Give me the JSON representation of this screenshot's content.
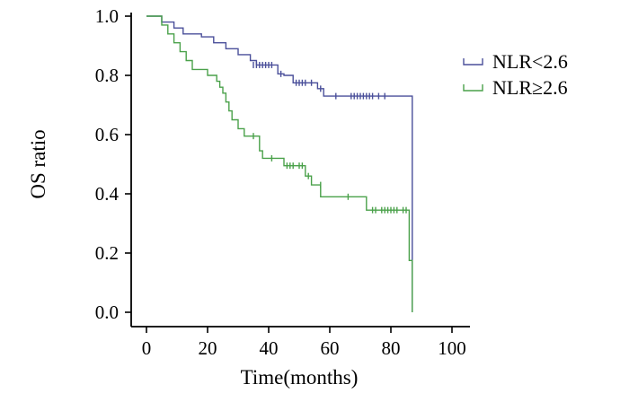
{
  "chart_data": {
    "type": "line",
    "subtype": "kaplan-meier",
    "title": "",
    "xlabel": "Time(months)",
    "ylabel": "OS ratio",
    "xlim": [
      0,
      100
    ],
    "ylim": [
      0,
      1.0
    ],
    "x_ticks": [
      "0",
      "20",
      "40",
      "60",
      "80",
      "100"
    ],
    "y_ticks": [
      "0.0",
      "0.2",
      "0.4",
      "0.6",
      "0.8",
      "1.0"
    ],
    "grid": false,
    "legend_position": "right",
    "series": [
      {
        "name": "NLR<2.6",
        "color": "#4a4f9a",
        "steps": [
          [
            0,
            1.0
          ],
          [
            5,
            1.0
          ],
          [
            5,
            0.98
          ],
          [
            9,
            0.98
          ],
          [
            9,
            0.96
          ],
          [
            12,
            0.96
          ],
          [
            12,
            0.94
          ],
          [
            18,
            0.94
          ],
          [
            18,
            0.93
          ],
          [
            22,
            0.93
          ],
          [
            22,
            0.91
          ],
          [
            26,
            0.91
          ],
          [
            26,
            0.89
          ],
          [
            30,
            0.89
          ],
          [
            30,
            0.87
          ],
          [
            34,
            0.87
          ],
          [
            34,
            0.85
          ],
          [
            36,
            0.85
          ],
          [
            36,
            0.835
          ],
          [
            43,
            0.835
          ],
          [
            43,
            0.805
          ],
          [
            45,
            0.805
          ],
          [
            45,
            0.8
          ],
          [
            48,
            0.8
          ],
          [
            48,
            0.775
          ],
          [
            56,
            0.775
          ],
          [
            56,
            0.755
          ],
          [
            58,
            0.755
          ],
          [
            58,
            0.73
          ],
          [
            87,
            0.73
          ],
          [
            87,
            0.0
          ]
        ],
        "censors": [
          [
            35,
            0.835
          ],
          [
            36,
            0.835
          ],
          [
            37,
            0.835
          ],
          [
            38,
            0.835
          ],
          [
            39,
            0.835
          ],
          [
            40,
            0.835
          ],
          [
            41,
            0.835
          ],
          [
            44,
            0.805
          ],
          [
            49,
            0.775
          ],
          [
            50,
            0.775
          ],
          [
            51,
            0.775
          ],
          [
            52,
            0.775
          ],
          [
            54,
            0.775
          ],
          [
            57,
            0.755
          ],
          [
            62,
            0.73
          ],
          [
            67,
            0.73
          ],
          [
            68,
            0.73
          ],
          [
            69,
            0.73
          ],
          [
            70,
            0.73
          ],
          [
            71,
            0.73
          ],
          [
            72,
            0.73
          ],
          [
            73,
            0.73
          ],
          [
            74,
            0.73
          ],
          [
            76,
            0.73
          ],
          [
            78,
            0.73
          ]
        ]
      },
      {
        "name": "NLR≥2.6",
        "color": "#4aa14a",
        "steps": [
          [
            0,
            1.0
          ],
          [
            5,
            1.0
          ],
          [
            5,
            0.97
          ],
          [
            7,
            0.97
          ],
          [
            7,
            0.94
          ],
          [
            9,
            0.94
          ],
          [
            9,
            0.91
          ],
          [
            11,
            0.91
          ],
          [
            11,
            0.88
          ],
          [
            13,
            0.88
          ],
          [
            13,
            0.85
          ],
          [
            15,
            0.85
          ],
          [
            15,
            0.82
          ],
          [
            20,
            0.82
          ],
          [
            20,
            0.8
          ],
          [
            23,
            0.8
          ],
          [
            23,
            0.78
          ],
          [
            24,
            0.78
          ],
          [
            24,
            0.76
          ],
          [
            25,
            0.76
          ],
          [
            25,
            0.74
          ],
          [
            26,
            0.74
          ],
          [
            26,
            0.71
          ],
          [
            27,
            0.71
          ],
          [
            27,
            0.68
          ],
          [
            28,
            0.68
          ],
          [
            28,
            0.65
          ],
          [
            30,
            0.65
          ],
          [
            30,
            0.62
          ],
          [
            32,
            0.62
          ],
          [
            32,
            0.595
          ],
          [
            37,
            0.595
          ],
          [
            37,
            0.545
          ],
          [
            38,
            0.545
          ],
          [
            38,
            0.52
          ],
          [
            45,
            0.52
          ],
          [
            45,
            0.495
          ],
          [
            52,
            0.495
          ],
          [
            52,
            0.46
          ],
          [
            54,
            0.46
          ],
          [
            54,
            0.43
          ],
          [
            57,
            0.43
          ],
          [
            57,
            0.39
          ],
          [
            72,
            0.39
          ],
          [
            72,
            0.345
          ],
          [
            86,
            0.345
          ],
          [
            86,
            0.175
          ],
          [
            87,
            0.175
          ],
          [
            87,
            0.0
          ]
        ],
        "censors": [
          [
            35,
            0.595
          ],
          [
            41,
            0.52
          ],
          [
            46,
            0.495
          ],
          [
            47,
            0.495
          ],
          [
            48,
            0.495
          ],
          [
            50,
            0.495
          ],
          [
            51,
            0.495
          ],
          [
            53,
            0.46
          ],
          [
            57,
            0.43
          ],
          [
            66,
            0.39
          ],
          [
            74,
            0.345
          ],
          [
            75,
            0.345
          ],
          [
            77,
            0.345
          ],
          [
            78,
            0.345
          ],
          [
            79,
            0.345
          ],
          [
            80,
            0.345
          ],
          [
            81,
            0.345
          ],
          [
            82,
            0.345
          ],
          [
            84,
            0.345
          ],
          [
            85,
            0.345
          ]
        ]
      }
    ]
  }
}
